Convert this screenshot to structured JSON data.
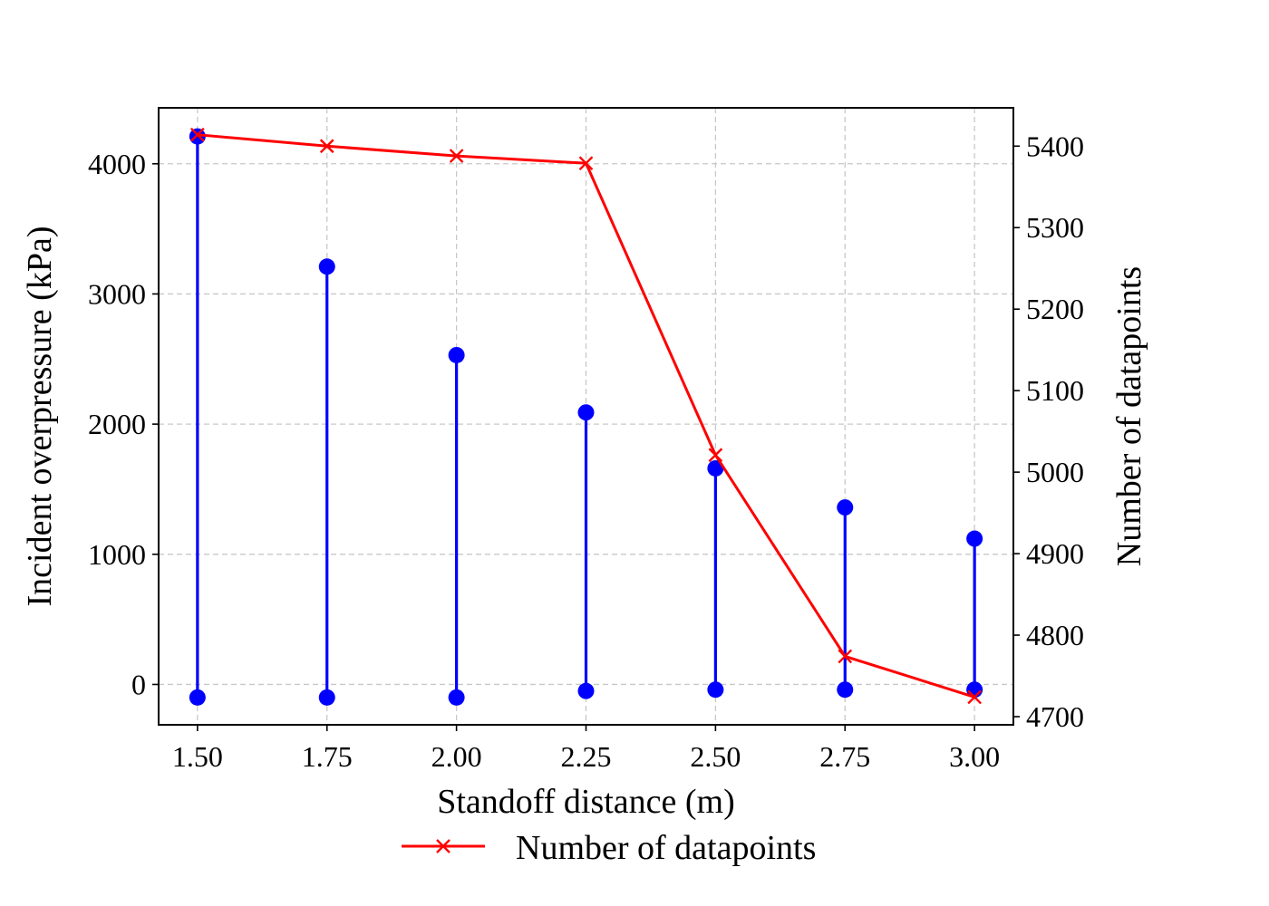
{
  "chart_data": {
    "type": "line",
    "x": [
      1.5,
      1.75,
      2.0,
      2.25,
      2.5,
      2.75,
      3.0
    ],
    "xticks": [
      "1.50",
      "1.75",
      "2.00",
      "2.25",
      "2.50",
      "2.75",
      "3.00"
    ],
    "xlabel": "Standoff distance (m)",
    "xlim": [
      1.425,
      3.075
    ],
    "left_axis": {
      "ylabel": "Incident overpressure (kPa)",
      "ylim": [
        -310,
        4430
      ],
      "ticks": [
        0,
        1000,
        2000,
        3000,
        4000
      ],
      "tick_labels": [
        "0",
        "1000",
        "2000",
        "3000",
        "4000"
      ]
    },
    "right_axis": {
      "ylabel": "Number of datapoints",
      "ylim": [
        4690,
        5447
      ],
      "ticks": [
        4700,
        4800,
        4900,
        5000,
        5100,
        5200,
        5300,
        5400
      ],
      "tick_labels": [
        "4700",
        "4800",
        "4900",
        "5000",
        "5100",
        "5200",
        "5300",
        "5400"
      ]
    },
    "ranges": {
      "axis": "left",
      "color": "#0000ff",
      "min": [
        -100,
        -100,
        -100,
        -50,
        -40,
        -40,
        -40
      ],
      "max": [
        4210,
        3210,
        2530,
        2090,
        1660,
        1360,
        1120
      ]
    },
    "series": [
      {
        "name": "Number of datapoints",
        "axis": "right",
        "color": "#ff0000",
        "marker": "x",
        "values": [
          5414,
          5400,
          5388,
          5379,
          5021,
          4774,
          4724
        ]
      }
    ],
    "grid": true,
    "legend": "bottom-center"
  }
}
